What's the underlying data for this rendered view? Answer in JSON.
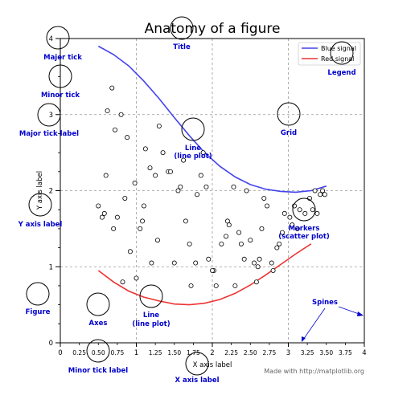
{
  "chart_data": {
    "type": "line",
    "title": "Anatomy of a figure",
    "xlabel": "X axis label",
    "ylabel": "Y axis label",
    "xlim": [
      0,
      4
    ],
    "ylim": [
      0,
      4
    ],
    "grid": true,
    "legend_position": "top-right",
    "x_major_ticks": [
      0,
      1,
      2,
      3,
      4
    ],
    "x_major_tick_labels": [
      "0",
      "1",
      "2",
      "3",
      "4"
    ],
    "x_minor_ticks": [
      0.25,
      0.5,
      0.75,
      1.25,
      1.5,
      1.75,
      2.25,
      2.5,
      2.75,
      3.25,
      3.5,
      3.75
    ],
    "x_minor_tick_labels": [
      "0.25",
      "0.50",
      "0.75",
      "1.25",
      "1.50",
      "1.75",
      "2.25",
      "2.50",
      "2.75",
      "3.25",
      "3.50",
      "3.75"
    ],
    "y_major_ticks": [
      0,
      1,
      2,
      3,
      4
    ],
    "y_major_tick_labels": [
      "0",
      "1",
      "2",
      "3",
      "4"
    ],
    "y_minor_ticks": [
      0.25,
      0.5,
      0.75,
      1.25,
      1.5,
      1.75,
      2.25,
      2.5,
      2.75,
      3.25,
      3.5,
      3.75
    ],
    "series": [
      {
        "name": "Blue signal",
        "kind": "line",
        "color": "#4444ee",
        "x": [
          0.5,
          0.7,
          0.9,
          1.1,
          1.3,
          1.5,
          1.7,
          1.9,
          2.1,
          2.3,
          2.5,
          2.7,
          2.9,
          3.1,
          3.3,
          3.5
        ],
        "y": [
          3.9,
          3.79,
          3.64,
          3.44,
          3.21,
          2.96,
          2.72,
          2.5,
          2.32,
          2.18,
          2.08,
          2.02,
          1.99,
          1.98,
          2.0,
          2.06
        ]
      },
      {
        "name": "Red signal",
        "kind": "line",
        "color": "#ee3333",
        "x": [
          0.5,
          0.7,
          0.9,
          1.1,
          1.3,
          1.5,
          1.7,
          1.9,
          2.1,
          2.3,
          2.5,
          2.7,
          2.9,
          3.1,
          3.3
        ],
        "y": [
          0.95,
          0.8,
          0.68,
          0.6,
          0.55,
          0.51,
          0.5,
          0.52,
          0.57,
          0.65,
          0.76,
          0.89,
          1.03,
          1.17,
          1.3
        ]
      },
      {
        "kind": "scatter",
        "x": [
          0.5,
          0.6,
          0.68,
          0.72,
          0.8,
          0.85,
          0.92,
          0.98,
          1.05,
          1.1,
          1.12,
          1.25,
          1.3,
          1.35,
          1.42,
          1.5,
          1.55,
          1.62,
          1.7,
          1.8,
          1.88,
          1.95,
          2.05,
          2.12,
          2.2,
          2.28,
          2.35,
          2.42,
          2.5,
          2.58,
          2.65,
          2.72,
          2.8,
          2.88,
          2.95,
          3.02,
          3.12,
          3.22,
          3.28,
          3.35,
          3.42,
          0.55,
          0.62,
          0.75,
          0.88,
          1.0,
          1.18,
          1.45,
          1.58,
          1.78,
          1.92,
          2.02,
          2.22,
          2.45,
          2.6,
          2.78,
          2.85,
          3.05,
          3.15,
          3.38,
          3.48,
          0.58,
          0.82,
          1.08,
          1.28,
          1.65,
          1.85,
          2.18,
          2.38,
          2.55,
          2.68,
          2.92,
          3.08,
          3.32,
          3.45,
          0.7,
          1.2,
          1.72,
          2.0,
          2.3,
          2.62
        ],
        "y": [
          1.8,
          2.2,
          3.35,
          2.8,
          3.0,
          1.9,
          1.2,
          2.1,
          1.5,
          1.8,
          2.55,
          2.2,
          2.85,
          2.5,
          2.25,
          1.05,
          2.0,
          2.4,
          1.3,
          1.95,
          2.5,
          1.1,
          0.75,
          1.3,
          1.6,
          2.05,
          1.45,
          1.1,
          1.35,
          0.8,
          1.5,
          1.8,
          0.95,
          1.3,
          1.7,
          1.65,
          1.5,
          1.7,
          1.9,
          2.0,
          1.95,
          1.65,
          3.05,
          1.65,
          2.7,
          0.85,
          2.3,
          2.25,
          2.05,
          1.05,
          2.05,
          0.95,
          1.55,
          2.0,
          1.0,
          1.05,
          1.25,
          1.55,
          1.75,
          1.7,
          1.95,
          1.7,
          0.8,
          1.6,
          1.35,
          1.6,
          2.2,
          1.4,
          1.3,
          1.05,
          1.9,
          1.45,
          1.8,
          1.75,
          2.0,
          1.5,
          1.05,
          0.75,
          0.95,
          0.75,
          1.1
        ]
      }
    ],
    "legend": [
      {
        "label": "Blue signal",
        "color": "#4444ee"
      },
      {
        "label": "Red signal",
        "color": "#ee3333"
      }
    ],
    "annotations": {
      "major_tick": "Major tick",
      "minor_tick": "Minor tick",
      "major_tick_label": "Major tick label",
      "y_axis_label": "Y axis label",
      "figure": "Figure",
      "axes": "Axes",
      "minor_tick_label": "Minor tick label",
      "x_axis_label": "X axis label",
      "title": "Title",
      "legend": "Legend",
      "grid": "Grid",
      "line_1": "Line",
      "line_2": "(line plot)",
      "markers_1": "Markers",
      "markers_2": "(scatter plot)",
      "spines": "Spines"
    },
    "footer": "Made with http://matplotlib.org"
  }
}
